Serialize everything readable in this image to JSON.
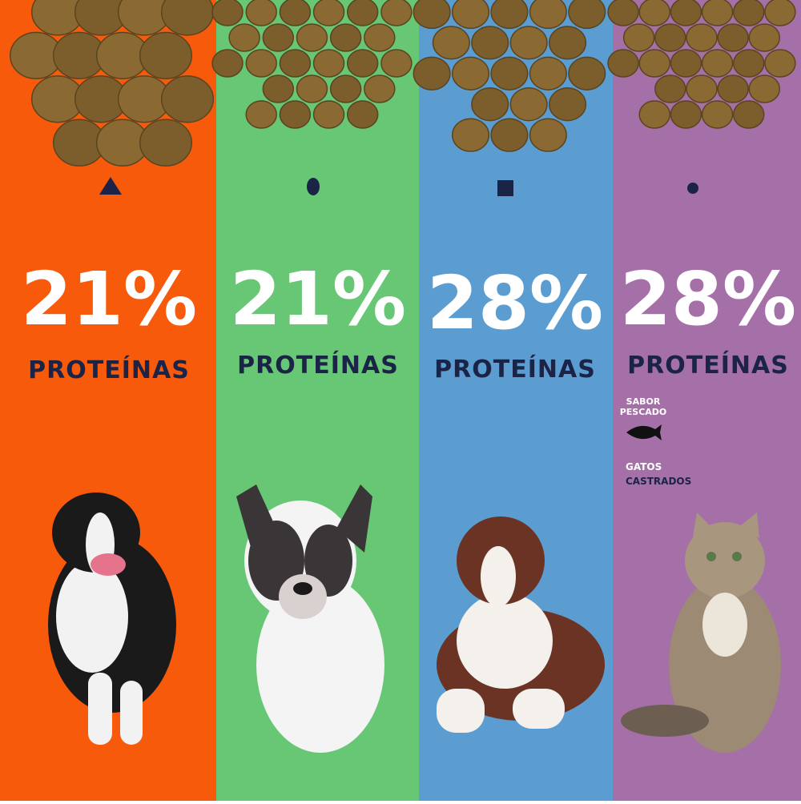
{
  "columns": [
    {
      "percent": "21%",
      "label": "PROTEÍNAS"
    },
    {
      "percent": "21%",
      "label": "PROTEÍNAS"
    },
    {
      "percent": "28%",
      "label": "PROTEÍNAS"
    },
    {
      "percent": "28%",
      "label": "PROTEÍNAS",
      "flavor": [
        "SABOR",
        "PESCADO"
      ],
      "target": [
        "GATOS",
        "CASTRADOS"
      ]
    }
  ]
}
